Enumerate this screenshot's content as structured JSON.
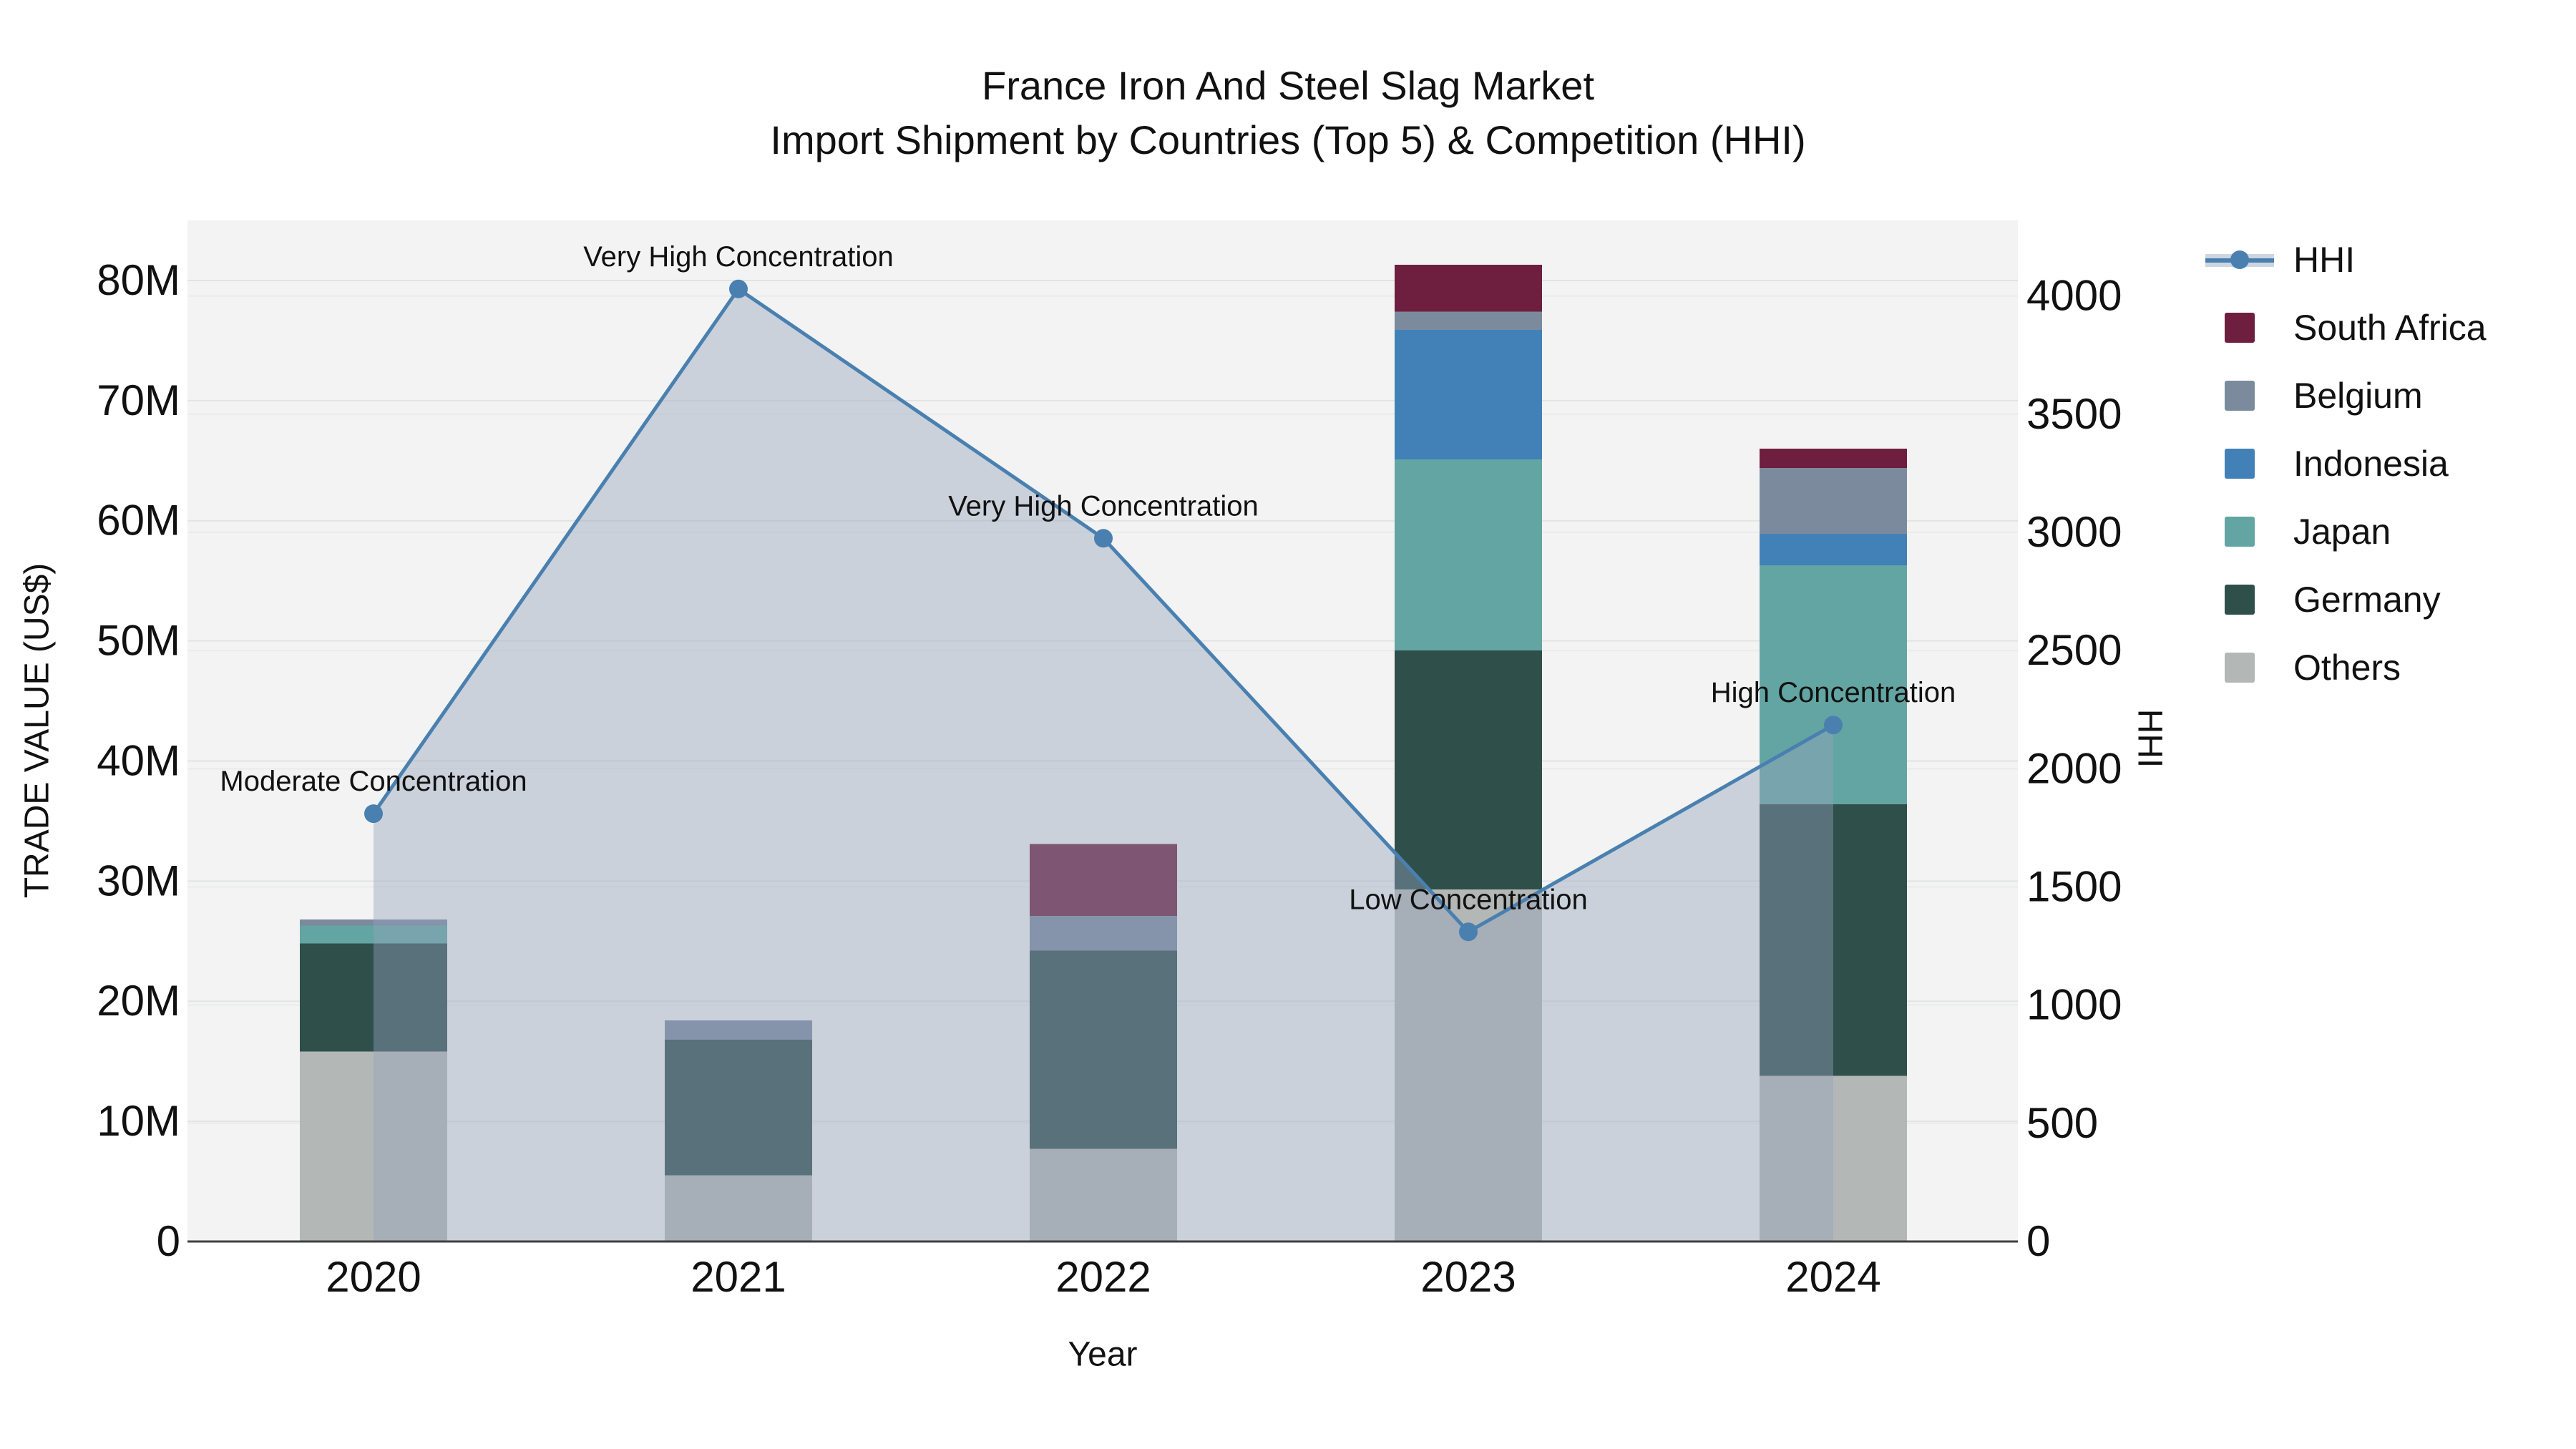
{
  "chart_data": {
    "type": "bar",
    "subtype": "stacked-bar-with-line",
    "title_line1": "France Iron And Steel Slag Market",
    "title_line2": "Import Shipment by Countries (Top 5) & Competition (HHI)",
    "categories": [
      "2020",
      "2021",
      "2022",
      "2023",
      "2024"
    ],
    "x_label": "Year",
    "y_left": {
      "label": "TRADE VALUE (US$)",
      "tick_labels": [
        "0",
        "10M",
        "20M",
        "30M",
        "40M",
        "50M",
        "60M",
        "70M",
        "80M"
      ],
      "tick_values": [
        0,
        10,
        20,
        30,
        40,
        50,
        60,
        70,
        80
      ],
      "range_max": 85,
      "units": "millions US$"
    },
    "y_right": {
      "label": "HHI",
      "tick_labels": [
        "0",
        "500",
        "1000",
        "1500",
        "2000",
        "2500",
        "3000",
        "3500",
        "4000"
      ],
      "tick_values": [
        0,
        500,
        1000,
        1500,
        2000,
        2500,
        3000,
        3500,
        4000
      ],
      "range_max": 4320
    },
    "series": [
      {
        "name": "Others",
        "color": "#b3b7b6",
        "values": [
          15.8,
          5.5,
          7.7,
          29.3,
          13.8
        ]
      },
      {
        "name": "Germany",
        "color": "#2f4f4a",
        "values": [
          9.0,
          11.3,
          16.5,
          19.9,
          22.6
        ]
      },
      {
        "name": "Japan",
        "color": "#63a5a2",
        "values": [
          1.5,
          0,
          0,
          15.9,
          19.9
        ]
      },
      {
        "name": "Indonesia",
        "color": "#4181b8",
        "values": [
          0,
          0,
          0,
          10.8,
          2.6
        ]
      },
      {
        "name": "Belgium",
        "color": "#7b8b9d",
        "values": [
          0.5,
          1.6,
          2.9,
          1.5,
          5.5
        ]
      },
      {
        "name": "South Africa",
        "color": "#6e1f3f",
        "values": [
          0,
          0,
          6.0,
          3.9,
          1.6
        ]
      }
    ],
    "line_series": {
      "name": "HHI",
      "color": "#4a80b0",
      "band_color_rgb": "148,163,188",
      "values": [
        1810,
        4030,
        2975,
        1310,
        2185
      ]
    },
    "annotations": [
      {
        "text": "Moderate Concentration",
        "category": "2020"
      },
      {
        "text": "Very High Concentration",
        "category": "2021"
      },
      {
        "text": "Very High Concentration",
        "category": "2022"
      },
      {
        "text": "Low Concentration",
        "category": "2023"
      },
      {
        "text": "High Concentration",
        "category": "2024"
      }
    ],
    "legend_items": [
      {
        "label": "HHI",
        "type": "line",
        "color": "#4a80b0"
      },
      {
        "label": "South Africa",
        "type": "swatch",
        "color": "#6e1f3f"
      },
      {
        "label": "Belgium",
        "type": "swatch",
        "color": "#7b8b9d"
      },
      {
        "label": "Indonesia",
        "type": "swatch",
        "color": "#4181b8"
      },
      {
        "label": "Japan",
        "type": "swatch",
        "color": "#63a5a2"
      },
      {
        "label": "Germany",
        "type": "swatch",
        "color": "#2f4f4a"
      },
      {
        "label": "Others",
        "type": "swatch",
        "color": "#b3b7b6"
      }
    ],
    "colors": {
      "plot_background": "#f2f3f2",
      "figure_background": "#ffffff",
      "gridline_left": "#e2e4e4",
      "gridline_right": "#eaecec",
      "axis_line": "#404040",
      "text": "#111111"
    },
    "legend_position": "right",
    "grid": true
  }
}
